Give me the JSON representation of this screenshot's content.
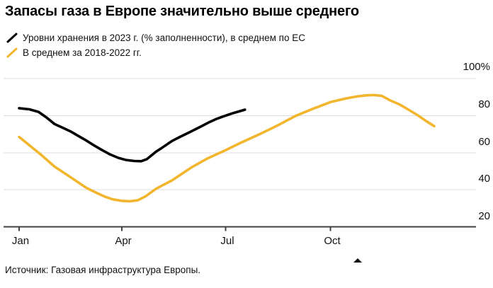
{
  "header": {
    "title": "Запасы газа в Европе значительно выше среднего"
  },
  "legend": {
    "items": [
      {
        "label": "Уровни хранения в 2023 г. (% заполненности), в среднем по ЕС",
        "color": "#000000"
      },
      {
        "label": "В среднем за 2018-2022 гг.",
        "color": "#F2B62E"
      }
    ]
  },
  "axis": {
    "y_labels": [
      "100%",
      "80",
      "60",
      "40",
      "20"
    ],
    "x_labels": [
      "Jan",
      "Apr",
      "Jul",
      "Oct"
    ]
  },
  "footer": {
    "source": "Источник: Газовая инфраструктура Европы."
  },
  "icons": {
    "cursor": "up-triangle-cursor"
  },
  "colors": {
    "grid": "#DDDDDD",
    "axis": "#3F3F3F",
    "line_2023": "#000000",
    "line_avg": "#F2B62E"
  },
  "chart_data": {
    "type": "line",
    "title": "Запасы газа в Европе значительно выше среднего",
    "xlabel": "",
    "ylabel": "% заполненности",
    "x_unit": "day_of_year",
    "xlim": [
      1,
      365
    ],
    "ylim": [
      20,
      100
    ],
    "y_ticks": [
      20,
      40,
      60,
      80,
      100
    ],
    "x_tick_days": [
      1,
      91,
      182,
      274
    ],
    "x_tick_labels": [
      "Jan",
      "Apr",
      "Jul",
      "Oct"
    ],
    "grid": "horizontal",
    "legend_position": "top-left",
    "series": [
      {
        "name": "Уровни хранения в 2023 г. (% заполненности), в среднем по ЕС",
        "color": "#000000",
        "points": [
          [
            1,
            84.0
          ],
          [
            10,
            83.4
          ],
          [
            18,
            82.0
          ],
          [
            25,
            79.0
          ],
          [
            32,
            75.5
          ],
          [
            39,
            73.5
          ],
          [
            46,
            71.5
          ],
          [
            53,
            69.0
          ],
          [
            60,
            66.5
          ],
          [
            67,
            63.8
          ],
          [
            74,
            61.3
          ],
          [
            81,
            59.0
          ],
          [
            88,
            57.2
          ],
          [
            95,
            56.0
          ],
          [
            102,
            55.5
          ],
          [
            108,
            55.4
          ],
          [
            113,
            56.5
          ],
          [
            118,
            59.0
          ],
          [
            121,
            60.5
          ],
          [
            126,
            62.5
          ],
          [
            135,
            66.3
          ],
          [
            142,
            68.5
          ],
          [
            152,
            71.5
          ],
          [
            160,
            74.0
          ],
          [
            167,
            76.2
          ],
          [
            174,
            78.2
          ],
          [
            182,
            80.0
          ],
          [
            188,
            81.2
          ],
          [
            194,
            82.3
          ],
          [
            199,
            83.2
          ]
        ]
      },
      {
        "name": "В среднем за 2018-2022 гг.",
        "color": "#F2B62E",
        "points": [
          [
            1,
            68.5
          ],
          [
            10,
            64.0
          ],
          [
            20,
            59.0
          ],
          [
            32,
            52.5
          ],
          [
            46,
            46.8
          ],
          [
            60,
            41.0
          ],
          [
            69,
            38.3
          ],
          [
            76,
            36.3
          ],
          [
            83,
            34.8
          ],
          [
            91,
            34.0
          ],
          [
            98,
            33.8
          ],
          [
            105,
            34.3
          ],
          [
            112,
            36.5
          ],
          [
            121,
            40.5
          ],
          [
            128,
            42.8
          ],
          [
            135,
            45.0
          ],
          [
            152,
            52.0
          ],
          [
            166,
            56.8
          ],
          [
            182,
            61.3
          ],
          [
            196,
            65.5
          ],
          [
            213,
            70.3
          ],
          [
            227,
            74.5
          ],
          [
            244,
            80.0
          ],
          [
            258,
            83.5
          ],
          [
            274,
            87.3
          ],
          [
            288,
            89.3
          ],
          [
            298,
            90.4
          ],
          [
            305,
            90.9
          ],
          [
            312,
            91.1
          ],
          [
            319,
            90.7
          ],
          [
            326,
            88.3
          ],
          [
            335,
            85.9
          ],
          [
            343,
            83.0
          ],
          [
            351,
            80.0
          ],
          [
            358,
            77.0
          ],
          [
            365,
            74.3
          ]
        ]
      }
    ]
  }
}
